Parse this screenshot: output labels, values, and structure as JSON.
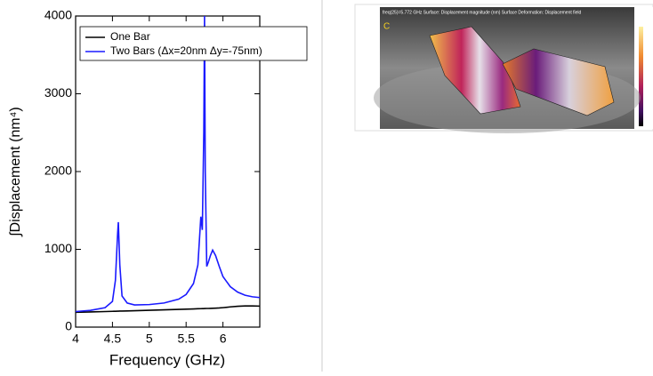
{
  "chart_data": {
    "type": "line",
    "x_label": "Frequency (GHz)",
    "y_label": "∫Displacement (nm⁴)",
    "x": [
      4,
      4.2,
      4.4,
      4.5,
      4.54,
      4.57,
      4.58,
      4.6,
      4.63,
      4.7,
      4.8,
      5.0,
      5.2,
      5.4,
      5.5,
      5.6,
      5.66,
      5.7,
      5.72,
      5.74,
      5.75,
      5.76,
      5.78,
      5.8,
      5.83,
      5.86,
      5.9,
      5.95,
      6.0,
      6.1,
      6.2,
      6.3,
      6.4,
      6.5
    ],
    "series": [
      {
        "name": "One Bar",
        "color": "#000000",
        "values": [
          190,
          195,
          200,
          203,
          204,
          205,
          205,
          206,
          206,
          208,
          211,
          216,
          222,
          228,
          231,
          234,
          236,
          237,
          238,
          238,
          239,
          239,
          240,
          240,
          241,
          242,
          244,
          246,
          250,
          260,
          268,
          272,
          272,
          270
        ]
      },
      {
        "name": "Two Bars (Δx=20nm Δy=-75nm)",
        "color": "#1a1aff",
        "values": [
          200,
          215,
          250,
          330,
          600,
          1200,
          1350,
          800,
          400,
          310,
          285,
          290,
          310,
          360,
          420,
          560,
          800,
          1420,
          1250,
          2500,
          4000,
          2000,
          780,
          830,
          920,
          990,
          920,
          780,
          650,
          520,
          450,
          410,
          390,
          380
        ]
      }
    ],
    "xlim": [
      4,
      6.5
    ],
    "ylim": [
      0,
      4000
    ],
    "xticks": [
      4,
      4.5,
      5,
      5.5,
      6
    ],
    "yticks": [
      0,
      1000,
      2000,
      3000,
      4000
    ],
    "legend": "upper-left"
  },
  "image_panel": {
    "caption": "freq(25)=5.772 GHz  Surface: Displacement magnitude (nm)  Surface Deformation: Displacement field",
    "panel_label": "C"
  }
}
